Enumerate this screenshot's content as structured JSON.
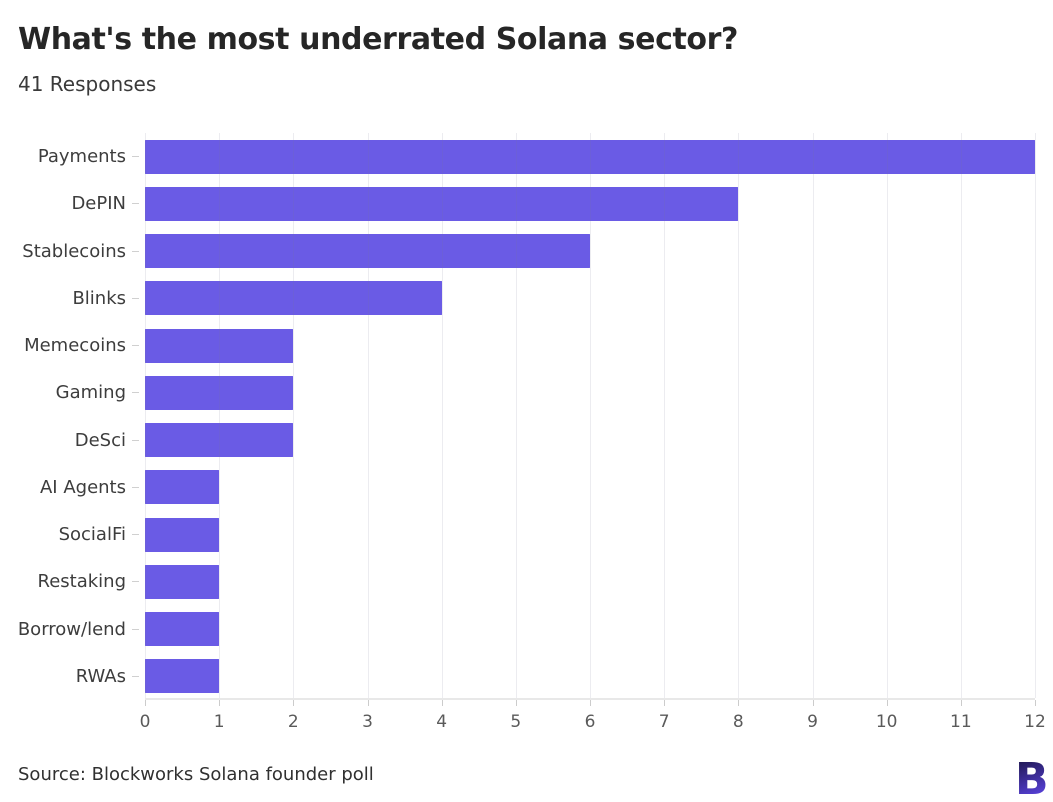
{
  "title": "What's the most underrated Solana sector?",
  "subtitle": "41 Responses",
  "source": "Source: Blockworks Solana founder poll",
  "logo": {
    "letter": "B",
    "name": "blockworks-logo"
  },
  "colors": {
    "bar": "#6556E4",
    "grid_over_bars": "rgba(120,120,150,0.14)",
    "axis_line": "#e8e8e8",
    "axis_tick": "#cccccc",
    "label_dash": "#d0d0d0",
    "title_text": "#262626",
    "subtitle_text": "#3a3a3a",
    "category_text": "#3d3d3d",
    "tick_text": "#5a5a5a",
    "source_text": "#303030",
    "logo_gradient_top": "#15103a",
    "logo_gradient_bottom": "#5c44e4"
  },
  "chart_data": {
    "type": "bar",
    "orientation": "horizontal",
    "title": "What's the most underrated Solana sector?",
    "subtitle": "41 Responses",
    "categories": [
      "Payments",
      "DePIN",
      "Stablecoins",
      "Blinks",
      "Memecoins",
      "Gaming",
      "DeSci",
      "AI Agents",
      "SocialFi",
      "Restaking",
      "Borrow/lend",
      "RWAs"
    ],
    "values": [
      12,
      8,
      6,
      4,
      2,
      2,
      2,
      1,
      1,
      1,
      1,
      1
    ],
    "total_responses": 41,
    "xlabel": "",
    "ylabel": "",
    "xlim": [
      0,
      12
    ],
    "xticks": [
      0,
      1,
      2,
      3,
      4,
      5,
      6,
      7,
      8,
      9,
      10,
      11,
      12
    ],
    "grid": true,
    "gridlines": "vertical",
    "legend": false,
    "caption": "Source: Blockworks Solana founder poll"
  }
}
